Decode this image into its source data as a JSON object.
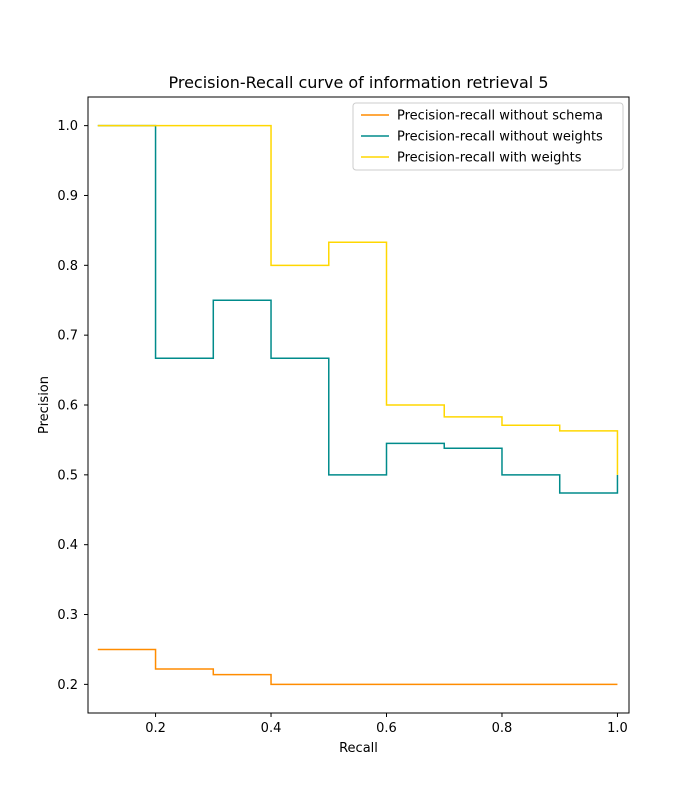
{
  "chart_data": {
    "type": "line",
    "title": "Precision-Recall curve of information retrieval 5",
    "xlabel": "Recall",
    "ylabel": "Precision",
    "xlim": [
      0.083,
      1.02
    ],
    "ylim": [
      0.159,
      1.041
    ],
    "xticks": [
      0.2,
      0.4,
      0.6,
      0.8,
      1.0
    ],
    "xtick_labels": [
      "0.2",
      "0.4",
      "0.6",
      "0.8",
      "1.0"
    ],
    "yticks": [
      0.2,
      0.3,
      0.4,
      0.5,
      0.6,
      0.7,
      0.8,
      0.9,
      1.0
    ],
    "ytick_labels": [
      "0.2",
      "0.3",
      "0.4",
      "0.5",
      "0.6",
      "0.7",
      "0.8",
      "0.9",
      "1.0"
    ],
    "grid": false,
    "legend_position": "top-right",
    "x": [
      0.1,
      0.2,
      0.3,
      0.4,
      0.5,
      0.6,
      0.7,
      0.8,
      0.9,
      1.0
    ],
    "series": [
      {
        "name": "Precision-recall without schema",
        "color": "#ff8c00",
        "values": [
          0.25,
          0.222,
          0.214,
          0.2,
          0.2,
          0.2,
          0.2,
          0.2,
          0.2,
          0.2
        ]
      },
      {
        "name": "Precision-recall without weights",
        "color": "#008b8b",
        "values": [
          1.0,
          0.667,
          0.75,
          0.667,
          0.5,
          0.545,
          0.538,
          0.5,
          0.474,
          0.5
        ]
      },
      {
        "name": "Precision-recall with weights",
        "color": "#ffd700",
        "values": [
          1.0,
          1.0,
          1.0,
          0.8,
          0.833,
          0.6,
          0.583,
          0.571,
          0.563,
          0.5
        ]
      }
    ]
  }
}
